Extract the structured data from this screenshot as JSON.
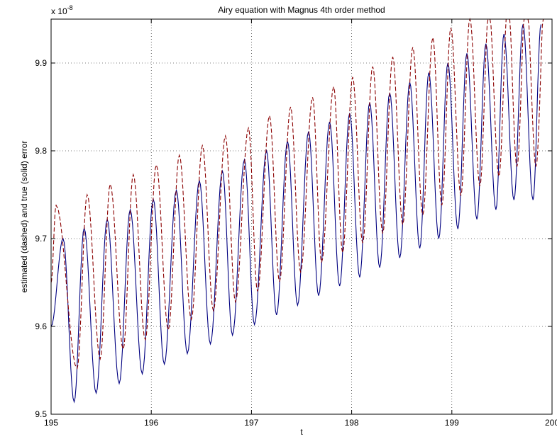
{
  "chart_data": {
    "type": "line",
    "title": "Airy equation with Magnus 4th order method",
    "xlabel": "t",
    "ylabel": "estimated (dashed) and true (solid) error",
    "exponent_label": "x 10",
    "exponent_power": "-8",
    "xlim": [
      195,
      200
    ],
    "ylim": [
      9.5,
      9.95
    ],
    "x_ticks": [
      "195",
      "196",
      "197",
      "198",
      "199",
      "200"
    ],
    "y_ticks": [
      "9.5",
      "9.6",
      "9.7",
      "9.8",
      "9.9"
    ],
    "grid": true,
    "x": [
      195.0,
      195.25,
      195.5,
      195.75,
      196.0,
      196.25,
      196.5,
      196.75,
      197.0,
      197.25,
      197.5,
      197.75,
      198.0,
      198.25,
      198.5,
      198.75,
      199.0,
      199.25,
      199.5,
      199.75,
      200.0
    ],
    "series": [
      {
        "style": "solid",
        "color": "#000080",
        "peaks_x": [
          195.12,
          195.33,
          195.56,
          195.79,
          196.02,
          196.25,
          196.48,
          196.71,
          196.93,
          197.15,
          197.36,
          197.57,
          197.78,
          197.98,
          198.18,
          198.38,
          198.58,
          198.77,
          198.96,
          199.15,
          199.34,
          199.52,
          199.71,
          199.89
        ],
        "peaks_y": [
          9.7,
          9.712,
          9.722,
          9.733,
          9.745,
          9.755,
          9.766,
          9.777,
          9.79,
          9.8,
          9.811,
          9.822,
          9.833,
          9.843,
          9.855,
          9.866,
          9.878,
          9.889,
          9.9,
          9.911,
          9.922,
          9.933,
          9.944,
          9.944
        ],
        "troughs_x": [
          195.0,
          195.23,
          195.45,
          195.68,
          195.91,
          196.13,
          196.36,
          196.59,
          196.81,
          197.03,
          197.25,
          197.46,
          197.67,
          197.88,
          198.08,
          198.28,
          198.48,
          198.68,
          198.87,
          199.06,
          199.25,
          199.44,
          199.62,
          199.81
        ],
        "troughs_y": [
          9.6,
          9.514,
          9.524,
          9.535,
          9.546,
          9.557,
          9.569,
          9.58,
          9.59,
          9.602,
          9.613,
          9.624,
          9.635,
          9.646,
          9.656,
          9.667,
          9.678,
          9.689,
          9.7,
          9.711,
          9.722,
          9.733,
          9.744,
          9.744
        ]
      },
      {
        "style": "dashed",
        "color": "#8b0000",
        "peaks_x": [
          195.05,
          195.36,
          195.59,
          195.82,
          196.05,
          196.28,
          196.51,
          196.74,
          196.97,
          197.18,
          197.39,
          197.61,
          197.82,
          198.01,
          198.21,
          198.41,
          198.61,
          198.81,
          198.99,
          199.18,
          199.37,
          199.56,
          199.74,
          199.93
        ],
        "peaks_y": [
          9.738,
          9.75,
          9.762,
          9.773,
          9.784,
          9.795,
          9.806,
          9.817,
          9.826,
          9.84,
          9.85,
          9.861,
          9.873,
          9.884,
          9.896,
          9.907,
          9.918,
          9.929,
          9.94,
          9.951,
          9.962,
          9.973,
          9.984,
          9.984
        ],
        "troughs_x": [
          195.0,
          195.26,
          195.49,
          195.72,
          195.94,
          196.17,
          196.4,
          196.62,
          196.84,
          197.06,
          197.28,
          197.49,
          197.7,
          197.91,
          198.11,
          198.31,
          198.51,
          198.71,
          198.9,
          199.09,
          199.28,
          199.47,
          199.65,
          199.84
        ],
        "troughs_y": [
          9.65,
          9.552,
          9.563,
          9.574,
          9.585,
          9.596,
          9.608,
          9.618,
          9.628,
          9.64,
          9.651,
          9.662,
          9.673,
          9.684,
          9.695,
          9.706,
          9.716,
          9.727,
          9.738,
          9.749,
          9.76,
          9.771,
          9.782,
          9.782
        ]
      }
    ]
  }
}
